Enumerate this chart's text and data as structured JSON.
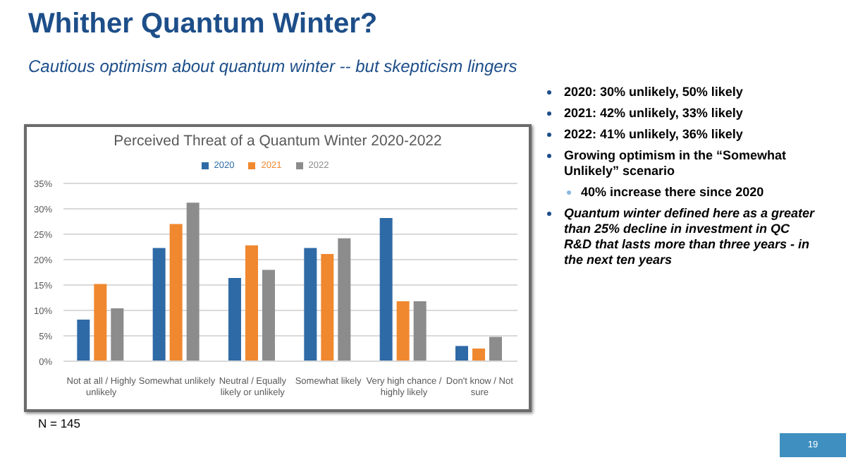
{
  "chart_data": {
    "type": "bar",
    "title": "Whither Quantum Winter?",
    "subtitle": "Cautious optimism about quantum winter -- but skepticism lingers",
    "categories": [
      "Not at all / Highly unlikely",
      "Somewhat unlikely",
      "Neutral / Equally likely or unlikely",
      "Somewhat likely",
      "Very high chance / highly likely",
      "Don't know / Not sure"
    ],
    "series": [
      {
        "name": "2020",
        "color": "#2e6aa6",
        "values": [
          8.2,
          22.3,
          16.4,
          22.3,
          28.2,
          3.0
        ]
      },
      {
        "name": "2021",
        "color": "#f0882f",
        "values": [
          15.2,
          27.0,
          22.8,
          21.1,
          11.8,
          2.5
        ]
      },
      {
        "name": "2022",
        "color": "#8c8c8c",
        "values": [
          10.4,
          31.2,
          18.0,
          24.2,
          11.8,
          4.8
        ]
      }
    ],
    "ylim": [
      0,
      35
    ],
    "yticks": [
      {
        "value": 0,
        "label": "0%"
      },
      {
        "value": 5,
        "label": "5%"
      },
      {
        "value": 10,
        "label": "10%"
      },
      {
        "value": 15,
        "label": "15%"
      },
      {
        "value": 20,
        "label": "20%"
      },
      {
        "value": 25,
        "label": "25%"
      },
      {
        "value": 30,
        "label": "30%"
      },
      {
        "value": 35,
        "label": "35%"
      }
    ],
    "grid": "y",
    "legend": "top",
    "annotations": [
      "Perceived Threat of a Quantum Winter 2020-2022",
      "2020: 30% unlikely, 50% likely",
      "2021: 42% unlikely, 33% likely",
      "2022: 41% unlikely, 36% likely",
      "Growing optimism in the “Somewhat Unlikely” scenario",
      "40% increase there since 2020",
      "Quantum winter defined here as a greater than 25% decline in investment in QC R&D that lasts more than three years - in the next ten years",
      "N = 145",
      "19"
    ]
  }
}
